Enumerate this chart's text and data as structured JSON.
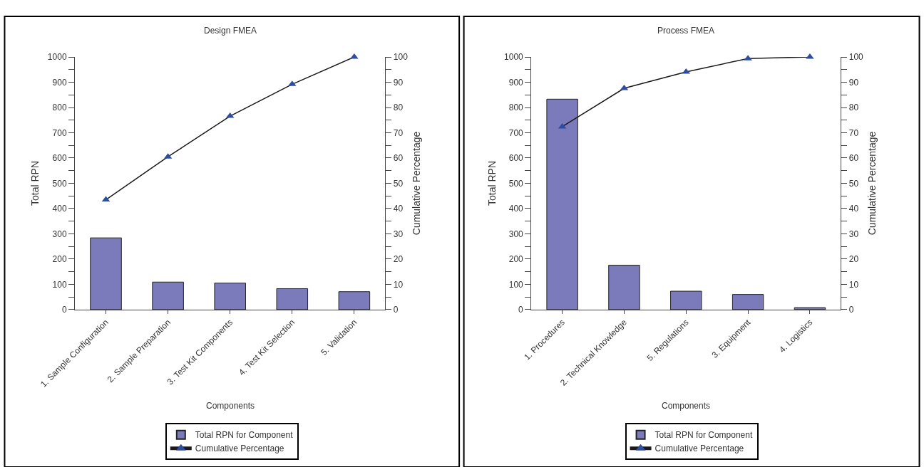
{
  "chart_data": [
    {
      "type": "bar",
      "title": "Design FMEA",
      "xlabel": "Components",
      "ylabel": "Total RPN",
      "y2label": "Cumulative Percentage",
      "categories": [
        "1. Sample Configuration",
        "2. Sample Preparation",
        "3. Test Kit Components",
        "4. Test Kit Selection",
        "5. Validation"
      ],
      "series": [
        {
          "name": "Total RPN for Component",
          "color": "#7b7bbb",
          "values": [
            284,
            109,
            105,
            83,
            71
          ]
        },
        {
          "name": "Cumulative Percentage",
          "type": "line",
          "axis": "y2",
          "color": "#2e4da0",
          "marker": "triangle",
          "line_style": "solid",
          "values": [
            43.5,
            60.5,
            76.6,
            89.2,
            100
          ]
        }
      ],
      "ylim": [
        0,
        1000
      ],
      "yticks": [
        0,
        {
          "value": 50,
          "label": null
        },
        100,
        {
          "value": 150,
          "label": null
        },
        200,
        {
          "value": 250,
          "label": null
        },
        300,
        {
          "value": 350,
          "label": null
        },
        400,
        {
          "value": 450,
          "label": null
        },
        500,
        {
          "value": 550,
          "label": null
        },
        600,
        {
          "value": 650,
          "label": null
        },
        700,
        {
          "value": 750,
          "label": null
        },
        800,
        {
          "value": 850,
          "label": null
        },
        900,
        {
          "value": 950,
          "label": null
        },
        1000
      ],
      "y2lim": [
        0,
        100
      ],
      "y2ticks": [
        0,
        {
          "value": 5,
          "label": null
        },
        10,
        {
          "value": 15,
          "label": null
        },
        20,
        {
          "value": 25,
          "label": null
        },
        30,
        {
          "value": 35,
          "label": null
        },
        40,
        {
          "value": 45,
          "label": null
        },
        50,
        {
          "value": 55,
          "label": null
        },
        60,
        {
          "value": 65,
          "label": null
        },
        70,
        {
          "value": 75,
          "label": null
        },
        80,
        {
          "value": 85,
          "label": null
        },
        90,
        {
          "value": 95,
          "label": null
        },
        100
      ],
      "legend": "bottom"
    },
    {
      "type": "bar",
      "title": "Process FMEA",
      "xlabel": "Components",
      "ylabel": "Total RPN",
      "y2label": "Cumulative Percentage",
      "categories": [
        "1. Procedures",
        "2. Technical Knowledge",
        "5. Regulations",
        "3. Equipment",
        "4. Logistics"
      ],
      "series": [
        {
          "name": "Total RPN for Component",
          "color": "#7b7bbb",
          "values": [
            833,
            176,
            73,
            60,
            8
          ]
        },
        {
          "name": "Cumulative Percentage",
          "type": "line",
          "axis": "y2",
          "color": "#2e4da0",
          "marker": "triangle",
          "line_style": "solid",
          "values": [
            72.4,
            87.6,
            94.1,
            99.4,
            100
          ]
        }
      ],
      "ylim": [
        0,
        1000
      ],
      "yticks": [
        0,
        {
          "value": 50,
          "label": null
        },
        100,
        {
          "value": 150,
          "label": null
        },
        200,
        {
          "value": 250,
          "label": null
        },
        300,
        {
          "value": 350,
          "label": null
        },
        400,
        {
          "value": 450,
          "label": null
        },
        500,
        {
          "value": 550,
          "label": null
        },
        600,
        {
          "value": 650,
          "label": null
        },
        700,
        {
          "value": 750,
          "label": null
        },
        800,
        {
          "value": 850,
          "label": null
        },
        900,
        {
          "value": 950,
          "label": null
        },
        1000
      ],
      "y2lim": [
        0,
        100
      ],
      "y2ticks": [
        0,
        {
          "value": 5,
          "label": null
        },
        10,
        {
          "value": 15,
          "label": null
        },
        20,
        {
          "value": 25,
          "label": null
        },
        30,
        {
          "value": 35,
          "label": null
        },
        40,
        {
          "value": 45,
          "label": null
        },
        50,
        {
          "value": 55,
          "label": null
        },
        60,
        {
          "value": 65,
          "label": null
        },
        70,
        {
          "value": 75,
          "label": null
        },
        80,
        {
          "value": 85,
          "label": null
        },
        90,
        {
          "value": 95,
          "label": null
        },
        100
      ],
      "legend": "bottom"
    }
  ]
}
